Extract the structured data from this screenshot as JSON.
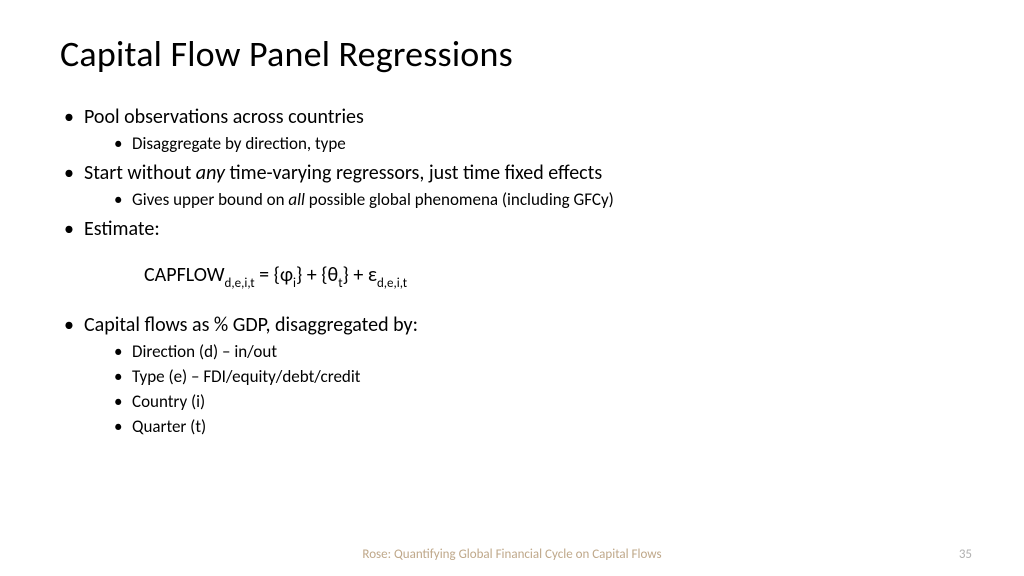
{
  "title": "Capital Flow Panel Regressions",
  "bullets": {
    "b1": "Pool observations across countries",
    "b1a": "Disaggregate by direction, type",
    "b2_pre": "Start without ",
    "b2_em": "any",
    "b2_post": " time-varying regressors, just time fixed effects",
    "b2a_pre": "Gives upper bound on ",
    "b2a_em": "all",
    "b2a_post": " possible global phenomena (including GFCy)",
    "b3": "Estimate:",
    "b4": "Capital flows as % GDP, disaggregated by:",
    "b4a": "Direction (d) – in/out",
    "b4b": "Type (e) – FDI/equity/debt/credit",
    "b4c": "Country (i)",
    "b4d": "Quarter (t)"
  },
  "equation": {
    "lhs": "CAPFLOW",
    "lhs_sub": "d,e,i,t",
    "eq": " = {ɸ",
    "phi_sub": "i",
    "mid1": "} + {θ",
    "theta_sub": "t",
    "mid2": "} + ε",
    "eps_sub": "d,e,i,t"
  },
  "footer": "Rose: Quantifying Global Financial Cycle on Capital Flows",
  "page": "35",
  "colors": {
    "text": "#000000",
    "footer": "#bfa88a",
    "pagenum": "#b0b0b0",
    "background": "#ffffff"
  },
  "fonts": {
    "title_size": 36,
    "body_size": 20,
    "sub_body_size": 17,
    "footer_size": 13
  }
}
